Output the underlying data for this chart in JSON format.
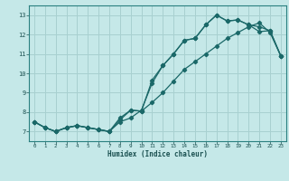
{
  "xlabel": "Humidex (Indice chaleur)",
  "bg_color": "#c5e8e8",
  "grid_color": "#a8d0d0",
  "line_color": "#1a6868",
  "xlim": [
    -0.5,
    23.5
  ],
  "ylim": [
    6.5,
    13.5
  ],
  "xticks": [
    0,
    1,
    2,
    3,
    4,
    5,
    6,
    7,
    8,
    9,
    10,
    11,
    12,
    13,
    14,
    15,
    16,
    17,
    18,
    19,
    20,
    21,
    22,
    23
  ],
  "yticks": [
    7,
    8,
    9,
    10,
    11,
    12,
    13
  ],
  "line1_x": [
    0,
    1,
    2,
    3,
    4,
    5,
    6,
    7,
    8,
    9,
    10,
    11,
    12,
    13,
    14,
    15,
    16,
    17,
    18,
    19,
    20,
    21,
    22,
    23
  ],
  "line1_y": [
    7.5,
    7.2,
    7.0,
    7.2,
    7.3,
    7.2,
    7.1,
    7.0,
    7.5,
    7.7,
    8.1,
    9.5,
    10.4,
    11.0,
    11.7,
    11.8,
    12.5,
    13.0,
    12.7,
    12.75,
    12.5,
    12.15,
    12.2,
    10.9
  ],
  "line2_x": [
    0,
    1,
    2,
    3,
    4,
    5,
    6,
    7,
    8,
    9,
    10,
    11,
    12,
    13,
    14,
    15,
    16,
    17,
    18,
    19,
    20,
    21,
    22,
    23
  ],
  "line2_y": [
    7.5,
    7.2,
    7.0,
    7.2,
    7.3,
    7.2,
    7.1,
    7.0,
    7.6,
    8.1,
    8.05,
    9.65,
    10.4,
    11.0,
    11.7,
    11.8,
    12.5,
    13.0,
    12.7,
    12.75,
    12.5,
    12.4,
    12.2,
    10.9
  ],
  "line3_x": [
    0,
    1,
    2,
    3,
    4,
    5,
    6,
    7,
    8,
    9,
    10,
    11,
    12,
    13,
    14,
    15,
    16,
    17,
    18,
    19,
    20,
    21,
    22,
    23
  ],
  "line3_y": [
    7.5,
    7.2,
    7.0,
    7.2,
    7.3,
    7.2,
    7.1,
    7.0,
    7.7,
    8.1,
    8.05,
    8.5,
    9.0,
    9.6,
    10.2,
    10.6,
    11.0,
    11.4,
    11.8,
    12.1,
    12.4,
    12.6,
    12.1,
    10.9
  ]
}
